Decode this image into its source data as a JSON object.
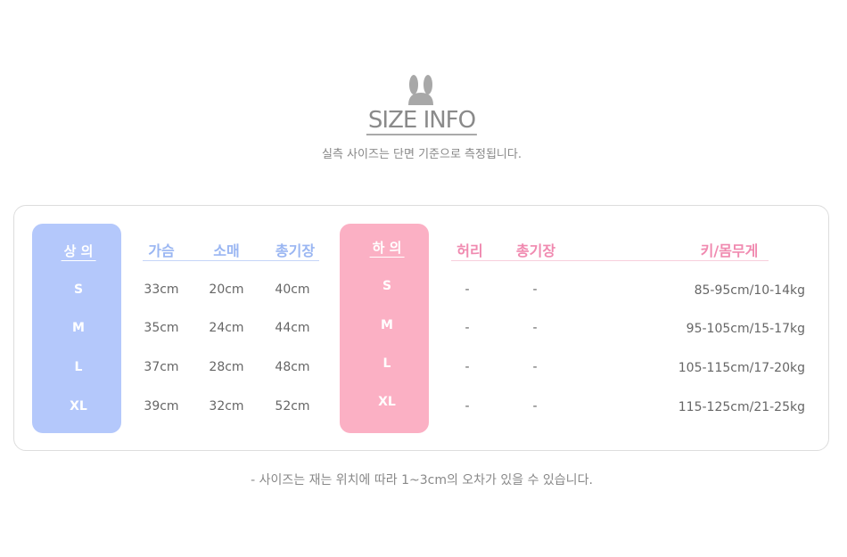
{
  "header": {
    "logo_icon": "bunny-ears-icon",
    "title": "SIZE INFO",
    "subtitle": "실측 사이즈는 단면 기준으로 측정됩니다."
  },
  "tops": {
    "label": "상 의",
    "color": "#b4c8fb",
    "columns": [
      "가슴",
      "소매",
      "총기장"
    ],
    "rows": [
      {
        "size": "S",
        "values": [
          "33cm",
          "20cm",
          "40cm"
        ]
      },
      {
        "size": "M",
        "values": [
          "35cm",
          "24cm",
          "44cm"
        ]
      },
      {
        "size": "L",
        "values": [
          "37cm",
          "28cm",
          "48cm"
        ]
      },
      {
        "size": "XL",
        "values": [
          "39cm",
          "32cm",
          "52cm"
        ]
      }
    ]
  },
  "bottoms": {
    "label": "하 의",
    "color": "#fbb0c4",
    "columns": [
      "허리",
      "총기장",
      "키/몸무게"
    ],
    "rows": [
      {
        "size": "S",
        "values": [
          "-",
          "-",
          "85-95cm/10-14kg"
        ]
      },
      {
        "size": "M",
        "values": [
          "-",
          "-",
          "95-105cm/15-17kg"
        ]
      },
      {
        "size": "L",
        "values": [
          "-",
          "-",
          "105-115cm/17-20kg"
        ]
      },
      {
        "size": "XL",
        "values": [
          "-",
          "-",
          "115-125cm/21-25kg"
        ]
      }
    ]
  },
  "footer": "- 사이즈는 재는 위치에 따라 1~3cm의 오차가 있을 수 있습니다."
}
